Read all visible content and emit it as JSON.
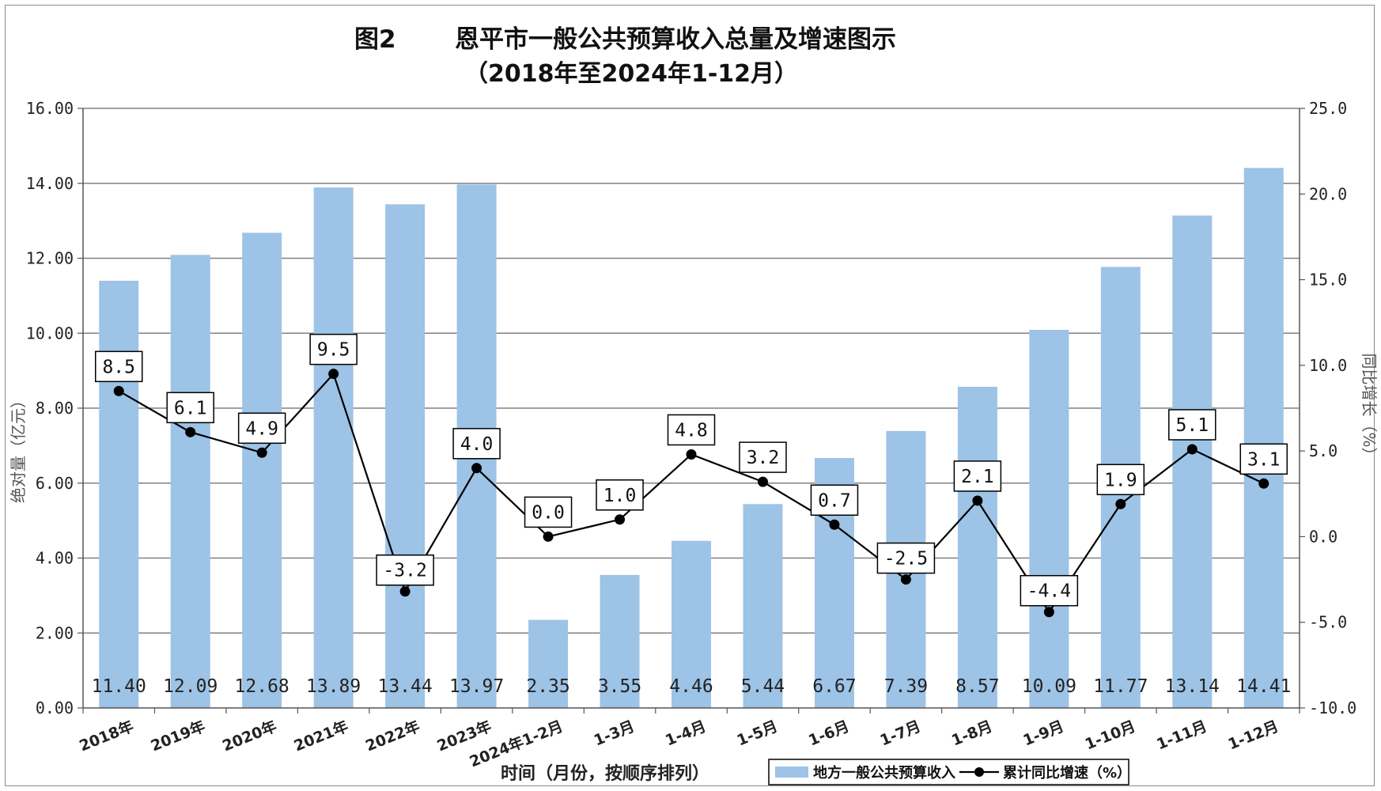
{
  "title": {
    "figure_no": "图2",
    "main": "恩平市一般公共预算收入总量及增速图示",
    "subtitle": "（2018年至2024年1-12月）"
  },
  "chart_data": {
    "type": "bar",
    "categories": [
      "2018年",
      "2019年",
      "2020年",
      "2021年",
      "2022年",
      "2023年",
      "2024年1-2月",
      "1-3月",
      "1-4月",
      "1-5月",
      "1-6月",
      "1-7月",
      "1-8月",
      "1-9月",
      "1-10月",
      "1-11月",
      "1-12月"
    ],
    "series": [
      {
        "name": "地方一般公共预算收入",
        "type": "bar",
        "axis": "left",
        "values": [
          11.4,
          12.09,
          12.68,
          13.89,
          13.44,
          13.97,
          2.35,
          3.55,
          4.46,
          5.44,
          6.67,
          7.39,
          8.57,
          10.09,
          11.77,
          13.14,
          14.41
        ]
      },
      {
        "name": "累计同比增速（%）",
        "type": "line",
        "axis": "right",
        "values": [
          8.5,
          6.1,
          4.9,
          9.5,
          -3.2,
          4.0,
          0.0,
          1.0,
          4.8,
          3.2,
          0.7,
          -2.5,
          2.1,
          -4.4,
          1.9,
          5.1,
          3.1
        ]
      }
    ],
    "xlabel": "时间（月份，按顺序排列）",
    "ylabel": "绝对量（亿元）",
    "y2label": "同比增长（%）",
    "ylim": [
      0,
      16
    ],
    "y2lim": [
      -10,
      25
    ],
    "y_ticks": [
      "0.00",
      "2.00",
      "4.00",
      "6.00",
      "8.00",
      "10.00",
      "12.00",
      "14.00",
      "16.00"
    ],
    "y2_ticks": [
      "-10.0",
      "-5.0",
      "0.0",
      "5.0",
      "10.0",
      "15.0",
      "20.0",
      "25.0"
    ],
    "bar_labels": [
      "11.40",
      "12.09",
      "12.68",
      "13.89",
      "13.44",
      "13.97",
      "2.35",
      "3.55",
      "4.46",
      "5.44",
      "6.67",
      "7.39",
      "8.57",
      "10.09",
      "11.77",
      "13.14",
      "14.41"
    ],
    "line_labels": [
      "8.5",
      "6.1",
      "4.9",
      "9.5",
      "-3.2",
      "4.0",
      "0.0",
      "1.0",
      "4.8",
      "3.2",
      "0.7",
      "-2.5",
      "2.1",
      "-4.4",
      "1.9",
      "5.1",
      "3.1"
    ],
    "grid": true,
    "legend_position": "bottom-right",
    "colors": {
      "bar": "#9dc3e6",
      "line": "#000000",
      "grid": "#808080"
    }
  }
}
